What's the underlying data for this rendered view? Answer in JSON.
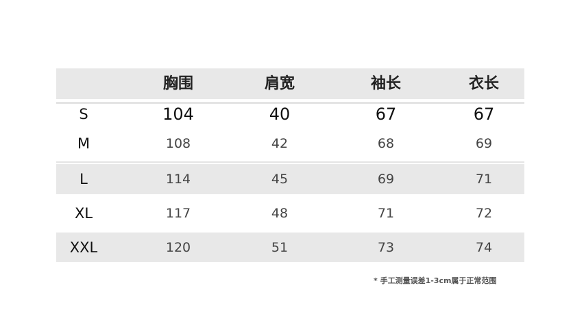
{
  "headers": [
    "",
    "胸围",
    "肩宽",
    "袖长",
    "衣长"
  ],
  "rows": [
    {
      "size": "S",
      "values": [
        "104",
        "40",
        "67",
        "67"
      ]
    },
    {
      "size": "M",
      "values": [
        "108",
        "42",
        "68",
        "69"
      ]
    },
    {
      "size": "L",
      "values": [
        "114",
        "45",
        "69",
        "71"
      ]
    },
    {
      "size": "XL",
      "values": [
        "117",
        "48",
        "71",
        "72"
      ]
    },
    {
      "size": "XXL",
      "values": [
        "120",
        "51",
        "73",
        "74"
      ]
    }
  ],
  "note": "* 手工测量误差1-3cm属于正常范围",
  "colors": {
    "band": "#e8e8e8",
    "text": "#222222"
  }
}
